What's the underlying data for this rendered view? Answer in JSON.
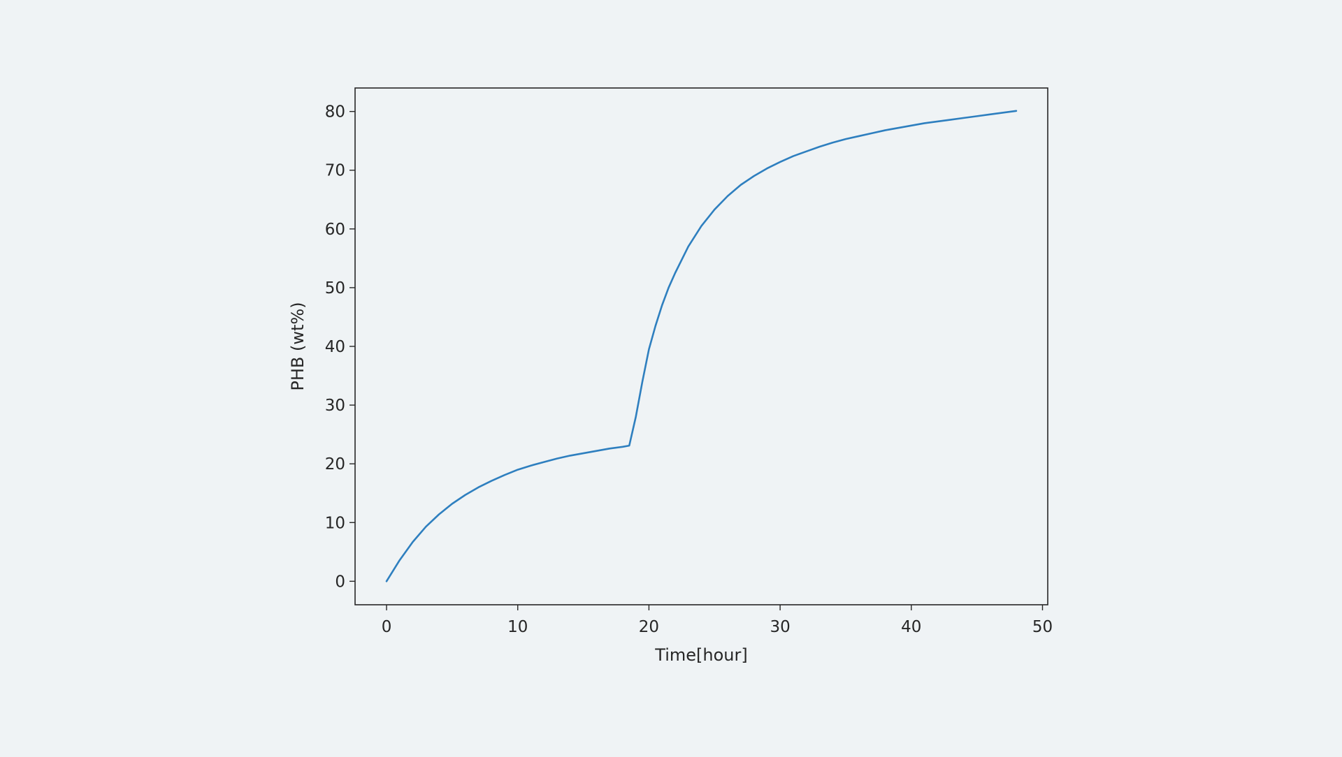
{
  "chart_data": {
    "type": "line",
    "title": "",
    "xlabel": "Time[hour]",
    "ylabel": "PHB (wt%)",
    "xlim": [
      -2.4,
      50.4
    ],
    "ylim": [
      -4,
      84
    ],
    "x_ticks": [
      0,
      10,
      20,
      30,
      40,
      50
    ],
    "y_ticks": [
      0,
      10,
      20,
      30,
      40,
      50,
      60,
      70,
      80
    ],
    "x_tick_labels": [
      "0",
      "10",
      "20",
      "30",
      "40",
      "50"
    ],
    "y_tick_labels": [
      "0",
      "10",
      "20",
      "30",
      "40",
      "50",
      "60",
      "70",
      "80"
    ],
    "grid": false,
    "legend": "none",
    "series": [
      {
        "color": "#2e7fbf",
        "x": [
          0,
          1,
          2,
          3,
          4,
          5,
          6,
          7,
          8,
          9,
          10,
          11,
          12,
          13,
          14,
          15,
          16,
          17,
          18,
          18.5,
          19,
          19.5,
          20,
          20.5,
          21,
          21.5,
          22,
          23,
          24,
          25,
          26,
          27,
          28,
          29,
          30,
          31,
          32,
          33,
          34,
          35,
          36,
          37,
          38,
          39,
          40,
          41,
          42,
          43,
          44,
          45,
          46,
          47,
          48
        ],
        "y": [
          0,
          3.6,
          6.7,
          9.3,
          11.4,
          13.2,
          14.7,
          16.0,
          17.1,
          18.1,
          19.0,
          19.7,
          20.3,
          20.9,
          21.4,
          21.8,
          22.2,
          22.6,
          22.9,
          23.1,
          28.0,
          34.0,
          39.5,
          43.5,
          47.0,
          50.0,
          52.5,
          57.0,
          60.5,
          63.3,
          65.6,
          67.5,
          69.0,
          70.3,
          71.4,
          72.4,
          73.2,
          74.0,
          74.7,
          75.3,
          75.8,
          76.3,
          76.8,
          77.2,
          77.6,
          78.0,
          78.3,
          78.6,
          78.9,
          79.2,
          79.5,
          79.8,
          80.1
        ]
      }
    ]
  }
}
